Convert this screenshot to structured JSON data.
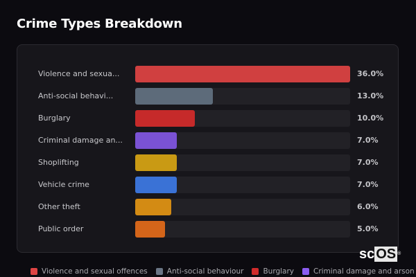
{
  "title": "Crime Types Breakdown",
  "chart_data": {
    "type": "bar",
    "orientation": "horizontal",
    "title": "Crime Types Breakdown",
    "categories": [
      "Violence and sexual offences",
      "Anti-social behaviour",
      "Burglary",
      "Criminal damage and arson",
      "Shoplifting",
      "Vehicle crime",
      "Other theft",
      "Public order"
    ],
    "display_labels": [
      "Violence and sexua...",
      "Anti-social behavi...",
      "Burglary",
      "Criminal damage an...",
      "Shoplifting",
      "Vehicle crime",
      "Other theft",
      "Public order"
    ],
    "values": [
      36.0,
      13.0,
      10.0,
      7.0,
      7.0,
      7.0,
      6.0,
      5.0
    ],
    "value_labels": [
      "36.0%",
      "13.0%",
      "10.0%",
      "7.0%",
      "7.0%",
      "7.0%",
      "6.0%",
      "5.0%"
    ],
    "colors": [
      "#d04040",
      "#5d6b7a",
      "#c62a2a",
      "#7a52d4",
      "#c99a14",
      "#3a72d6",
      "#d38b14",
      "#d4651a"
    ],
    "xlim": [
      0,
      36
    ],
    "legend_position": "bottom",
    "grid": false
  },
  "legend": [
    {
      "label": "Violence and sexual offences",
      "color": "#e04444"
    },
    {
      "label": "Anti-social behaviour",
      "color": "#6a7585"
    },
    {
      "label": "Burglary",
      "color": "#d12b2b"
    },
    {
      "label": "Criminal damage and arson",
      "color": "#8b5cf0"
    }
  ],
  "logo": {
    "sc": "sc",
    "os": "OS",
    "reg": "®"
  }
}
